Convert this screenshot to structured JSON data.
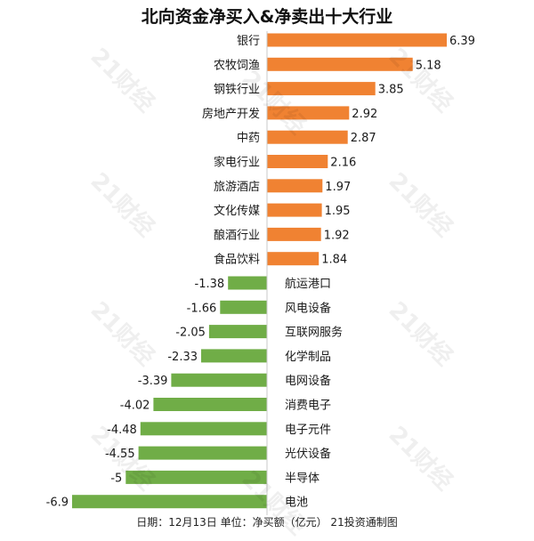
{
  "title": "北向资金净买入&净卖出十大行业",
  "footer": "日期：12月13日 单位：净买额（亿元） 21投资通制图",
  "watermark": "21财经",
  "colors": {
    "positive": "#F08232",
    "negative": "#70AD47",
    "axis": "#C8C8C8",
    "text": "#1a1a1a"
  },
  "chart_data": {
    "type": "bar",
    "orientation": "horizontal",
    "title": "北向资金净买入&净卖出十大行业",
    "xlabel": "",
    "ylabel": "",
    "xlim": [
      -6.9,
      6.39
    ],
    "grid": false,
    "categories": [
      "银行",
      "农牧饲渔",
      "钢铁行业",
      "房地产开发",
      "中药",
      "家电行业",
      "旅游酒店",
      "文化传媒",
      "酿酒行业",
      "食品饮料",
      "航运港口",
      "风电设备",
      "互联网服务",
      "化学制品",
      "电网设备",
      "消费电子",
      "电子元件",
      "光伏设备",
      "半导体",
      "电池"
    ],
    "values": [
      6.39,
      5.18,
      3.85,
      2.92,
      2.87,
      2.16,
      1.97,
      1.95,
      1.92,
      1.84,
      -1.38,
      -1.66,
      -2.05,
      -2.33,
      -3.39,
      -4.02,
      -4.48,
      -4.55,
      -5,
      -6.9
    ],
    "value_labels": [
      "6.39",
      "5.18",
      "3.85",
      "2.92",
      "2.87",
      "2.16",
      "1.97",
      "1.95",
      "1.92",
      "1.84",
      "-1.38",
      "-1.66",
      "-2.05",
      "-2.33",
      "-3.39",
      "-4.02",
      "-4.48",
      "-4.55",
      "-5",
      "-6.9"
    ]
  }
}
